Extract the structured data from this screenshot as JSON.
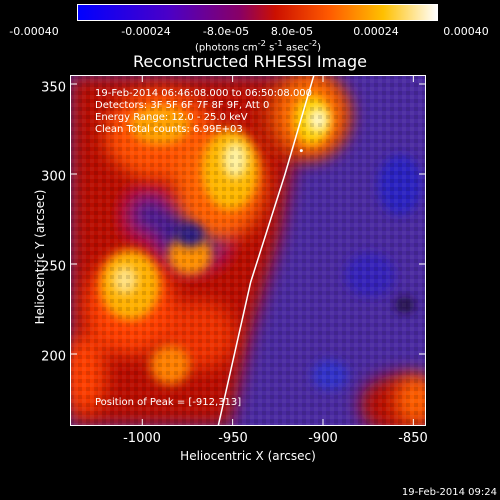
{
  "colorbar": {
    "ticks": [
      "-0.00040",
      "-0.00024",
      "-8.0e-05",
      "8.0e-05",
      "0.00024",
      "0.00040"
    ],
    "unit_html": "(photons cm<sup>-2</sup> s<sup>-1</sup> asec<sup>-2</sup>)",
    "unit_text": "(photons cm-2 s-1 asec-2)",
    "range": [
      -0.0004,
      0.0004
    ],
    "colormap": "RHESSI rainbow-to-hot: blue, purple, red, orange, yellow, white"
  },
  "chart": {
    "title": "Reconstructed RHESSI Image",
    "xlabel": "Heliocentric X (arcsec)",
    "ylabel": "Heliocentric Y (arcsec)",
    "xticks": [
      "-1000",
      "-950",
      "-900",
      "-850"
    ],
    "yticks": [
      "200",
      "250",
      "300",
      "350"
    ],
    "info_lines": [
      "19-Feb-2014 06:46:08.000 to 06:50:08.000",
      "Detectors: 3F 5F 6F 7F 8F 9F, Att 0",
      "Energy Range: 12.0 - 25.0 keV",
      "Clean     Total counts: 6.99E+03"
    ],
    "peak_label": "Position of Peak = [-912,313]",
    "timestamp": "19-Feb-2014 09:24"
  },
  "chart_data": {
    "type": "heatmap",
    "title": "Reconstructed RHESSI Image",
    "xlabel": "Heliocentric X (arcsec)",
    "ylabel": "Heliocentric Y (arcsec)",
    "xlim": [
      -1040,
      -843
    ],
    "ylim": [
      160,
      355
    ],
    "value_range": [
      -0.0004,
      0.0004
    ],
    "peak": [
      -912,
      313
    ],
    "limb_curve": [
      [
        -958,
        160
      ],
      [
        -940,
        240
      ],
      [
        -921,
        300
      ],
      [
        -905,
        355
      ]
    ],
    "bright_regions": [
      {
        "x": -1000,
        "y": 290,
        "level": "high"
      },
      {
        "x": -985,
        "y": 240,
        "level": "high"
      },
      {
        "x": -912,
        "y": 313,
        "level": "peak"
      },
      {
        "x": -1020,
        "y": 220,
        "level": "medium"
      },
      {
        "x": -850,
        "y": 175,
        "level": "medium"
      }
    ]
  }
}
